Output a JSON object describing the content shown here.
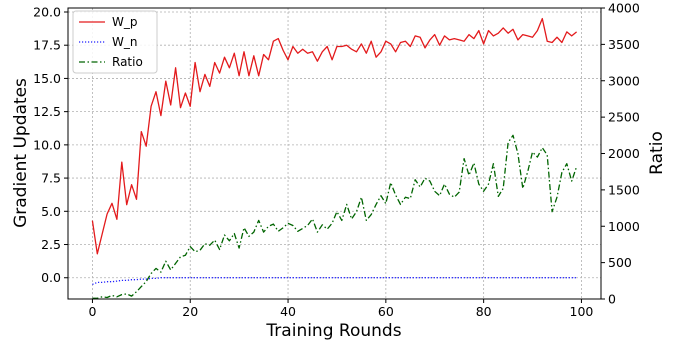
{
  "chart_data": {
    "type": "line",
    "xlabel": "Training Rounds",
    "ylabel": "Gradient Updates",
    "y2label": "Ratio",
    "xlim": [
      -5,
      104
    ],
    "ylim": [
      -1.6,
      20.3
    ],
    "y2lim": [
      0,
      4000
    ],
    "x_ticks": [
      0,
      20,
      40,
      60,
      80,
      100
    ],
    "y_ticks": [
      0.0,
      2.5,
      5.0,
      7.5,
      10.0,
      12.5,
      15.0,
      17.5,
      20.0
    ],
    "y_tick_labels": [
      "0.0",
      "2.5",
      "5.0",
      "7.5",
      "10.0",
      "12.5",
      "15.0",
      "17.5",
      "20.0"
    ],
    "y2_ticks": [
      0,
      500,
      1000,
      1500,
      2000,
      2500,
      3000,
      3500,
      4000
    ],
    "grid": true,
    "legend_position": "upper-left",
    "series": [
      {
        "name": "W_p",
        "axis": "left",
        "color": "#e31a1c",
        "style": "solid",
        "x": [
          0,
          1,
          2,
          3,
          4,
          5,
          6,
          7,
          8,
          9,
          10,
          11,
          12,
          13,
          14,
          15,
          16,
          17,
          18,
          19,
          20,
          21,
          22,
          23,
          24,
          25,
          26,
          27,
          28,
          29,
          30,
          31,
          32,
          33,
          34,
          35,
          36,
          37,
          38,
          39,
          40,
          41,
          42,
          43,
          44,
          45,
          46,
          47,
          48,
          49,
          50,
          51,
          52,
          53,
          54,
          55,
          56,
          57,
          58,
          59,
          60,
          61,
          62,
          63,
          64,
          65,
          66,
          67,
          68,
          69,
          70,
          71,
          72,
          73,
          74,
          75,
          76,
          77,
          78,
          79,
          80,
          81,
          82,
          83,
          84,
          85,
          86,
          87,
          88,
          89,
          90,
          91,
          92,
          93,
          94,
          95,
          96,
          97,
          98,
          99
        ],
        "values": [
          4.3,
          1.8,
          3.3,
          4.8,
          5.6,
          4.4,
          8.7,
          5.5,
          7.0,
          5.9,
          11.0,
          9.9,
          12.9,
          14.0,
          12.2,
          14.8,
          13.0,
          15.8,
          12.8,
          13.9,
          12.9,
          16.2,
          14.0,
          15.3,
          14.4,
          16.2,
          15.4,
          16.6,
          15.8,
          16.9,
          15.2,
          17.0,
          15.2,
          16.7,
          15.2,
          16.8,
          16.4,
          17.8,
          18.0,
          17.1,
          16.4,
          17.4,
          16.9,
          17.2,
          16.9,
          17.0,
          16.3,
          17.0,
          17.4,
          16.4,
          17.4,
          17.4,
          17.5,
          17.2,
          17.0,
          17.6,
          16.9,
          17.8,
          16.6,
          17.0,
          17.8,
          17.6,
          17.0,
          17.7,
          17.8,
          17.4,
          18.2,
          18.1,
          17.3,
          17.9,
          18.3,
          17.5,
          18.2,
          17.9,
          18.0,
          17.9,
          17.8,
          18.3,
          18.0,
          18.6,
          17.6,
          18.6,
          18.2,
          18.4,
          18.8,
          18.4,
          18.7,
          17.9,
          18.3,
          18.2,
          18.1,
          18.6,
          19.5,
          17.8,
          17.7,
          18.1,
          17.7,
          18.5,
          18.2,
          18.5
        ],
        "x2": [
          83,
          84,
          85,
          86,
          87,
          88,
          89,
          90,
          91,
          92,
          93,
          94,
          95,
          96,
          97,
          98,
          99
        ],
        "values2": [
          18.3,
          19.1,
          18.5,
          18.8,
          18.9,
          18.6,
          18.8,
          18.2,
          17.8,
          18.2,
          18.3,
          19.0,
          18.2,
          17.8,
          18.7,
          18.3,
          18.5
        ]
      },
      {
        "name": "W_n",
        "axis": "left",
        "color": "#1f1fff",
        "style": "dotted",
        "x": [
          0,
          1,
          2,
          3,
          4,
          5,
          6,
          7,
          8,
          9,
          10,
          11,
          12,
          13,
          14,
          15,
          20,
          30,
          40,
          50,
          60,
          70,
          80,
          90,
          99
        ],
        "values": [
          -0.5,
          -0.35,
          -0.35,
          -0.3,
          -0.3,
          -0.25,
          -0.2,
          -0.2,
          -0.15,
          -0.15,
          -0.1,
          -0.1,
          -0.05,
          -0.05,
          0.0,
          0.0,
          0.0,
          0.0,
          0.0,
          0.0,
          0.0,
          0.0,
          0.0,
          0.0,
          0.0
        ]
      },
      {
        "name": "Ratio",
        "axis": "right",
        "color": "#006400",
        "style": "dashdot",
        "x": [
          0,
          1,
          2,
          3,
          4,
          5,
          6,
          7,
          8,
          9,
          10,
          11,
          12,
          13,
          14,
          15,
          16,
          17,
          18,
          19,
          20,
          21,
          22,
          23,
          24,
          25,
          26,
          27,
          28,
          29,
          30,
          31,
          32,
          33,
          34,
          35,
          36,
          37,
          38,
          39,
          40,
          41,
          42,
          43,
          44,
          45,
          46,
          47,
          48,
          49,
          50,
          51,
          52,
          53,
          54,
          55,
          56,
          57,
          58,
          59,
          60,
          61,
          62,
          63,
          64,
          65,
          66,
          67,
          68,
          69,
          70,
          71,
          72,
          73,
          74,
          75,
          76,
          77,
          78,
          79,
          80,
          81,
          82,
          83,
          84,
          85,
          86,
          87,
          88,
          89,
          90,
          91,
          92,
          93,
          94,
          95,
          96,
          97,
          98,
          99
        ],
        "values": [
          10,
          10,
          30,
          20,
          50,
          30,
          60,
          70,
          40,
          100,
          170,
          240,
          350,
          420,
          370,
          520,
          400,
          490,
          580,
          600,
          720,
          650,
          670,
          760,
          740,
          810,
          680,
          880,
          800,
          900,
          700,
          980,
          860,
          920,
          1080,
          920,
          1000,
          1030,
          930,
          980,
          1040,
          1010,
          930,
          970,
          1010,
          1100,
          920,
          1020,
          960,
          1040,
          1200,
          1080,
          1300,
          1100,
          1200,
          1400,
          1080,
          1160,
          1300,
          1420,
          1310,
          1600,
          1430,
          1300,
          1400,
          1380,
          1640,
          1540,
          1660,
          1620,
          1480,
          1420,
          1580,
          1440,
          1400,
          1470,
          1930,
          1700,
          1870,
          1580,
          1480,
          1580,
          1860,
          1410,
          1520,
          2150,
          2250,
          2000,
          1520,
          1750,
          2020,
          1950,
          2080,
          1980,
          1200,
          1400,
          1740,
          1860,
          1620,
          1820
        ]
      }
    ]
  }
}
